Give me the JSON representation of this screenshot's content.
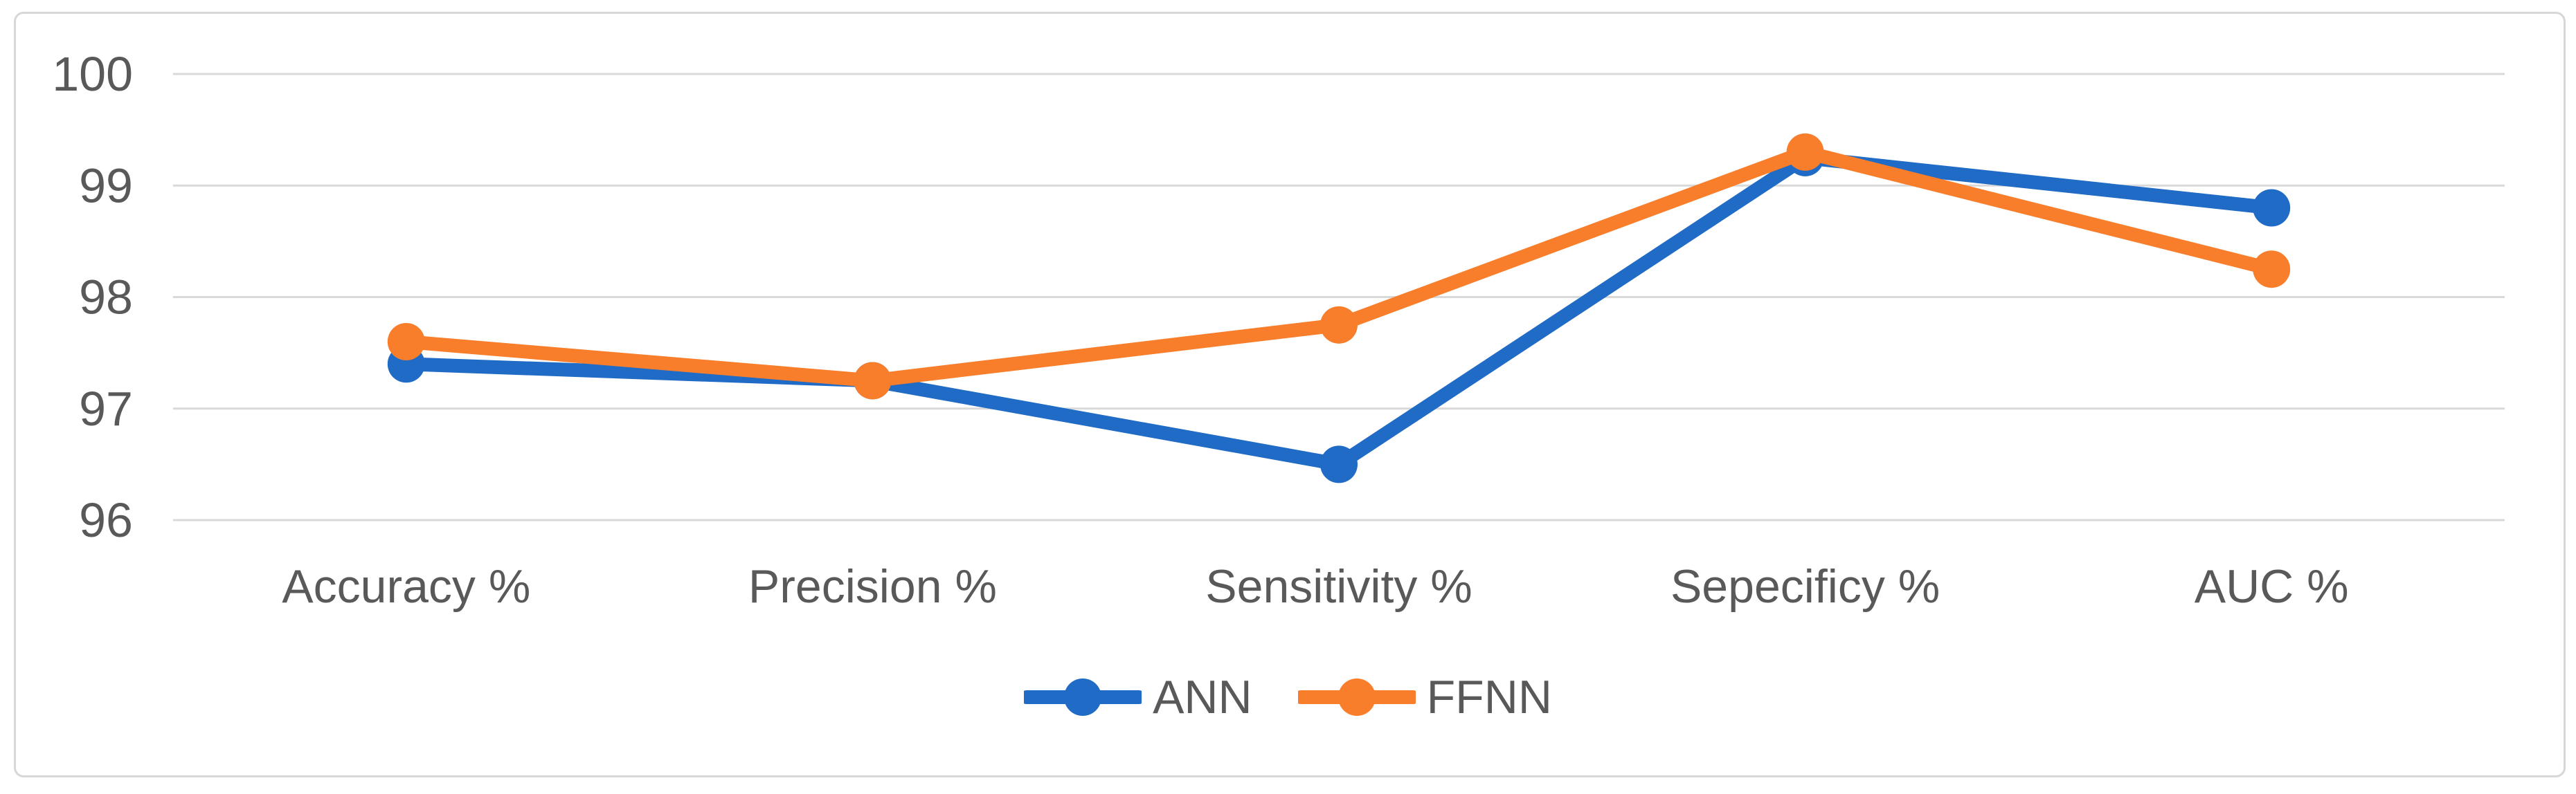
{
  "chart_data": {
    "type": "line",
    "title": "",
    "xlabel": "",
    "ylabel": "",
    "categories": [
      "Accuracy %",
      "Precision %",
      "Sensitivity %",
      "Sepecificy %",
      "AUC %"
    ],
    "series": [
      {
        "name": "ANN",
        "color": "#1F6BC5",
        "marker": "circle",
        "values": [
          97.4,
          97.25,
          96.5,
          99.25,
          98.8
        ]
      },
      {
        "name": "FFNN",
        "color": "#F87E2B",
        "marker": "circle",
        "values": [
          97.6,
          97.25,
          97.75,
          99.3,
          98.25
        ]
      }
    ],
    "ylim": [
      96,
      100
    ],
    "yticks": [
      100,
      99,
      98,
      97,
      96
    ],
    "grid": true,
    "gridline_color": "#D9D9D9",
    "axis_text_color": "#595959",
    "legend_position": "bottom-center",
    "legend_entries": [
      "ANN",
      "FFNN"
    ]
  },
  "frame": {
    "border_color": "#D7D7D7"
  }
}
